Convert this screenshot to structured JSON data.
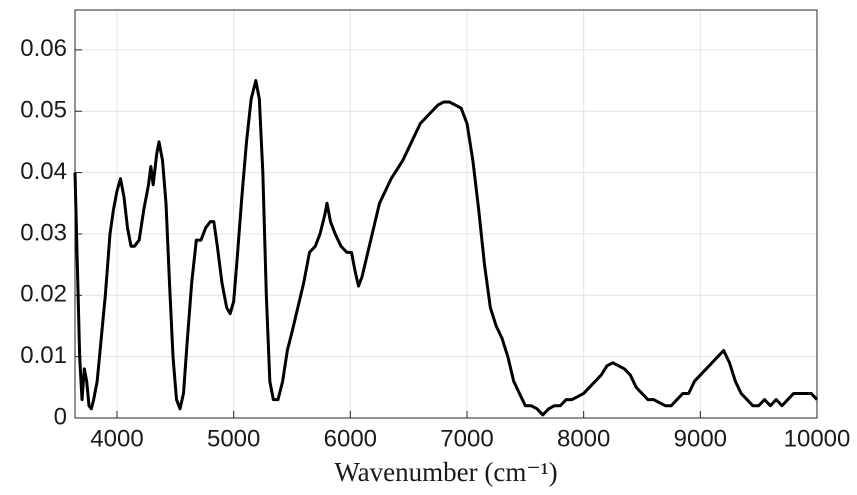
{
  "chart_data": {
    "type": "line",
    "x_label": "Wavenumber (cm⁻¹)",
    "x": [
      3640,
      3660,
      3680,
      3700,
      3720,
      3740,
      3760,
      3780,
      3800,
      3830,
      3860,
      3900,
      3940,
      3970,
      4000,
      4030,
      4060,
      4090,
      4120,
      4150,
      4190,
      4230,
      4270,
      4290,
      4310,
      4340,
      4360,
      4390,
      4420,
      4450,
      4480,
      4510,
      4540,
      4570,
      4600,
      4640,
      4680,
      4720,
      4760,
      4800,
      4830,
      4860,
      4900,
      4940,
      4970,
      5000,
      5030,
      5070,
      5110,
      5150,
      5190,
      5220,
      5250,
      5280,
      5310,
      5340,
      5380,
      5420,
      5460,
      5500,
      5550,
      5600,
      5650,
      5700,
      5740,
      5780,
      5800,
      5830,
      5870,
      5920,
      5970,
      6010,
      6040,
      6070,
      6100,
      6150,
      6200,
      6250,
      6300,
      6350,
      6400,
      6450,
      6500,
      6550,
      6600,
      6650,
      6700,
      6750,
      6800,
      6850,
      6900,
      6950,
      7000,
      7050,
      7100,
      7150,
      7200,
      7250,
      7300,
      7350,
      7400,
      7450,
      7500,
      7550,
      7600,
      7650,
      7700,
      7750,
      7800,
      7850,
      7900,
      7950,
      8000,
      8050,
      8100,
      8150,
      8200,
      8250,
      8300,
      8350,
      8400,
      8450,
      8500,
      8550,
      8600,
      8650,
      8700,
      8750,
      8800,
      8850,
      8900,
      8950,
      9000,
      9050,
      9100,
      9150,
      9200,
      9250,
      9300,
      9350,
      9400,
      9450,
      9500,
      9550,
      9600,
      9650,
      9700,
      9750,
      9800,
      9850,
      9900,
      9950,
      10000
    ],
    "series": [
      {
        "color": "#000000",
        "values": [
          0.04,
          0.025,
          0.01,
          0.003,
          0.008,
          0.006,
          0.002,
          0.0015,
          0.003,
          0.006,
          0.012,
          0.02,
          0.03,
          0.034,
          0.037,
          0.039,
          0.036,
          0.031,
          0.028,
          0.028,
          0.029,
          0.034,
          0.038,
          0.041,
          0.038,
          0.043,
          0.045,
          0.042,
          0.035,
          0.022,
          0.01,
          0.003,
          0.0015,
          0.004,
          0.012,
          0.022,
          0.029,
          0.029,
          0.031,
          0.032,
          0.032,
          0.028,
          0.022,
          0.018,
          0.017,
          0.019,
          0.026,
          0.036,
          0.045,
          0.052,
          0.055,
          0.052,
          0.04,
          0.02,
          0.006,
          0.003,
          0.003,
          0.006,
          0.011,
          0.014,
          0.018,
          0.022,
          0.027,
          0.028,
          0.03,
          0.033,
          0.035,
          0.032,
          0.03,
          0.028,
          0.027,
          0.027,
          0.024,
          0.0215,
          0.023,
          0.027,
          0.031,
          0.035,
          0.037,
          0.039,
          0.0405,
          0.042,
          0.044,
          0.046,
          0.048,
          0.049,
          0.05,
          0.051,
          0.0515,
          0.0515,
          0.051,
          0.0505,
          0.048,
          0.042,
          0.034,
          0.025,
          0.018,
          0.015,
          0.013,
          0.01,
          0.006,
          0.004,
          0.002,
          0.002,
          0.0015,
          0.0005,
          0.0015,
          0.002,
          0.002,
          0.003,
          0.003,
          0.0035,
          0.004,
          0.005,
          0.006,
          0.007,
          0.0085,
          0.009,
          0.0085,
          0.008,
          0.007,
          0.005,
          0.004,
          0.003,
          0.003,
          0.0025,
          0.002,
          0.002,
          0.003,
          0.004,
          0.004,
          0.006,
          0.007,
          0.008,
          0.009,
          0.01,
          0.011,
          0.009,
          0.006,
          0.004,
          0.003,
          0.002,
          0.002,
          0.003,
          0.002,
          0.003,
          0.002,
          0.003,
          0.004,
          0.004,
          0.004,
          0.004,
          0.003
        ]
      }
    ],
    "xlim": [
      3640,
      10000
    ],
    "xticks": [
      4000,
      5000,
      6000,
      7000,
      8000,
      9000,
      10000
    ],
    "ylim": [
      0,
      0.0665
    ],
    "yticks": [
      0,
      0.01,
      0.02,
      0.03,
      0.04,
      0.05,
      0.06
    ],
    "grid": true
  }
}
